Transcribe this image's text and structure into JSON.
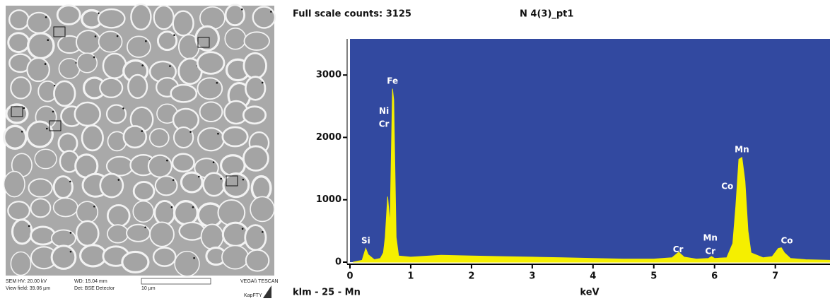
{
  "chart_data": {
    "type": "area",
    "title": "N 4(3)_pt1",
    "subtitle": "Full scale counts: 3125",
    "xlabel": "keV",
    "footnote": "klm - 25 - Mn",
    "x": [
      0.05,
      0.2,
      0.26,
      0.3,
      0.4,
      0.5,
      0.55,
      0.58,
      0.62,
      0.66,
      0.7,
      0.72,
      0.76,
      0.8,
      1.0,
      1.5,
      2.0,
      2.5,
      3.0,
      3.5,
      4.0,
      4.5,
      5.0,
      5.3,
      5.41,
      5.5,
      5.7,
      5.9,
      5.95,
      6.0,
      6.2,
      6.3,
      6.35,
      6.4,
      6.45,
      6.5,
      6.55,
      6.6,
      6.8,
      6.95,
      7.05,
      7.1,
      7.15,
      7.25,
      7.5,
      7.9
    ],
    "values": [
      0,
      30,
      220,
      120,
      40,
      60,
      150,
      400,
      1050,
      600,
      2780,
      2600,
      400,
      100,
      80,
      110,
      100,
      90,
      80,
      70,
      60,
      50,
      50,
      70,
      160,
      80,
      50,
      60,
      90,
      60,
      70,
      300,
      900,
      1650,
      1680,
      1300,
      500,
      150,
      70,
      90,
      220,
      230,
      150,
      60,
      40,
      30
    ],
    "color": "#f5ef00",
    "background": "#3249a0",
    "xlim": [
      0,
      7.9
    ],
    "ylim": [
      0,
      3580
    ],
    "xticks": [
      0,
      1,
      2,
      3,
      4,
      5,
      6,
      7
    ],
    "yticks": [
      0,
      1000,
      2000,
      3000
    ],
    "annotations": [
      {
        "text": "Fe",
        "x": 0.7,
        "y": 2900
      },
      {
        "text": "Ni",
        "x": 0.56,
        "y": 2420
      },
      {
        "text": "Cr",
        "x": 0.56,
        "y": 2210
      },
      {
        "text": "Si",
        "x": 0.26,
        "y": 340
      },
      {
        "text": "Cr",
        "x": 5.4,
        "y": 200
      },
      {
        "text": "Mn",
        "x": 5.93,
        "y": 385
      },
      {
        "text": "Cr",
        "x": 5.93,
        "y": 170
      },
      {
        "text": "Mn",
        "x": 6.45,
        "y": 1800
      },
      {
        "text": "Co",
        "x": 6.21,
        "y": 1210
      },
      {
        "text": "Co",
        "x": 7.19,
        "y": 340
      }
    ]
  },
  "sem_image": {
    "hv": "SEM HV: 20.00 kV",
    "wd": "WD: 15.04 mm",
    "brand": "VEGA\\\\ TESCAN",
    "view_field": "View field: 39.06 µm",
    "detector": "Det: BSE Detector",
    "scale": "10 µm",
    "lab": "KapFTY"
  }
}
